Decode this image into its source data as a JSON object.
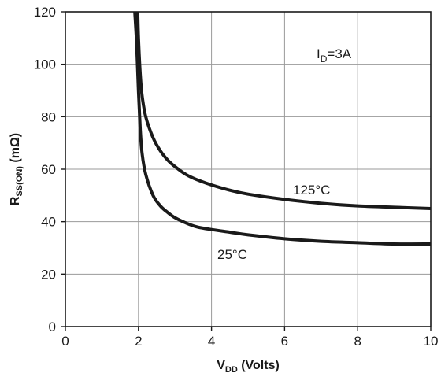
{
  "chart_data": {
    "type": "line",
    "xlabel_main": "V",
    "xlabel_sub": "DD",
    "xlabel_units": " (Volts)",
    "ylabel_main": "R",
    "ylabel_sub": "SS(ON)",
    "ylabel_units": " (mΩ)",
    "xlim": [
      0,
      10
    ],
    "ylim": [
      0,
      120
    ],
    "xticks": [
      "0",
      "2",
      "4",
      "6",
      "8",
      "10"
    ],
    "yticks": [
      "0",
      "20",
      "40",
      "60",
      "80",
      "100",
      "120"
    ],
    "grid": true,
    "annotation_main": "I",
    "annotation_sub": "D",
    "annotation_value": "=3A",
    "series": [
      {
        "name": "125°C",
        "x": [
          1.98,
          2.0,
          2.05,
          2.1,
          2.2,
          2.4,
          2.6,
          2.8,
          3.0,
          3.3,
          3.6,
          4.0,
          4.5,
          5.0,
          6.0,
          7.0,
          8.0,
          9.0,
          10.0
        ],
        "y": [
          120,
          110,
          96,
          88,
          80,
          72,
          67,
          63.5,
          61,
          58,
          56,
          54,
          52,
          50.5,
          48.5,
          47,
          46,
          45.5,
          45
        ]
      },
      {
        "name": "25°C",
        "x": [
          1.9,
          1.95,
          2.0,
          2.05,
          2.1,
          2.2,
          2.4,
          2.6,
          2.8,
          3.0,
          3.3,
          3.6,
          4.0,
          4.5,
          5.0,
          6.0,
          7.0,
          8.0,
          9.0,
          10.0
        ],
        "y": [
          120,
          108,
          90,
          75,
          66,
          58,
          50,
          46,
          43.5,
          41.5,
          39.5,
          38,
          37,
          36,
          35,
          33.5,
          32.5,
          32,
          31.5,
          31.5
        ]
      }
    ]
  }
}
